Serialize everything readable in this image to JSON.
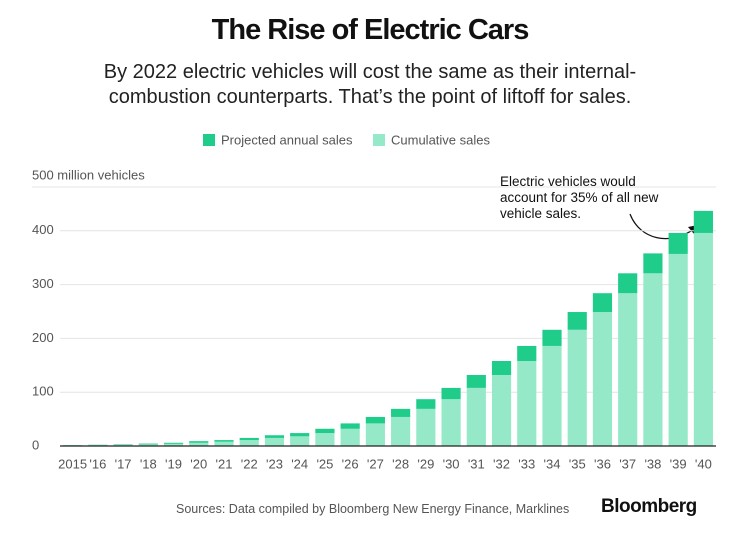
{
  "chart_data": {
    "type": "stacked_bar",
    "title": "The Rise of Electric Cars",
    "subtitle": "By 2022 electric vehicles will cost the same as their internal-combustion counterparts. That’s the point of liftoff for sales.",
    "categories": [
      "2015",
      "'16",
      "'17",
      "'18",
      "'19",
      "'20",
      "'21",
      "'22",
      "'23",
      "'24",
      "'25",
      "'26",
      "'27",
      "'28",
      "'29",
      "'30",
      "'31",
      "'32",
      "'33",
      "'34",
      "'35",
      "'36",
      "'37",
      "'38",
      "'39",
      "'40"
    ],
    "series": [
      {
        "name": "Projected annual sales",
        "color": "#1fcc8a",
        "values": [
          0.5,
          0.8,
          1,
          1.5,
          2,
          3,
          3,
          4,
          5,
          6,
          8,
          10,
          12,
          15,
          18,
          21,
          24,
          26,
          28,
          30,
          33,
          35,
          37,
          37,
          39,
          41
        ]
      },
      {
        "name": "Cumulative sales",
        "color": "#96e9c8",
        "values": [
          1,
          1.5,
          2,
          3,
          4,
          6,
          8,
          11,
          15,
          18,
          24,
          32,
          42,
          54,
          69,
          87,
          108,
          132,
          158,
          186,
          216,
          249,
          284,
          321,
          357,
          396
        ]
      }
    ],
    "ylim": [
      0,
      500
    ],
    "yticks": [
      0,
      100,
      200,
      300,
      400,
      {
        "value": 500,
        "label": "500 million vehicles"
      }
    ],
    "grid": true,
    "annotation": "Electric vehicles would account for 35% of all new vehicle sales.",
    "source": "Sources: Data compiled by Bloomberg New Energy Finance, Marklines",
    "brand": "Bloomberg"
  }
}
